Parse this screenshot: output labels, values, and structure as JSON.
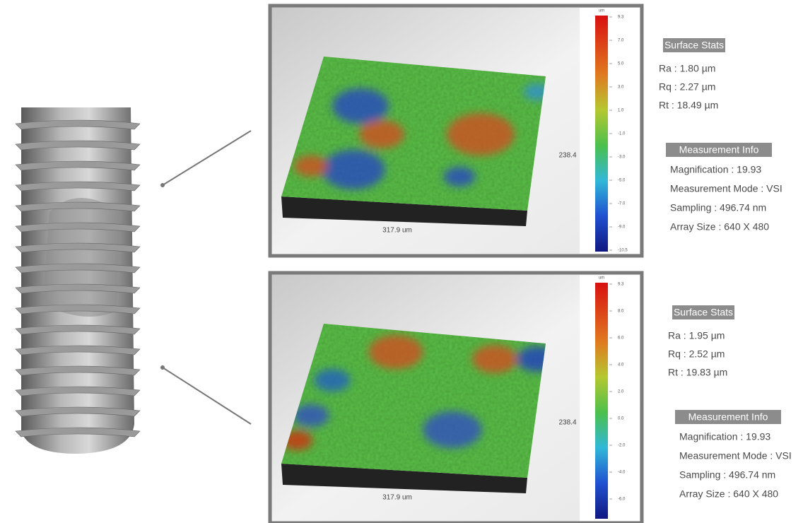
{
  "panels": [
    {
      "scale_unit": "um",
      "scale_labels": [
        "9.3",
        "7.0",
        "5.0",
        "3.0",
        "1.0",
        "-1.0",
        "-3.0",
        "-5.0",
        "-7.0",
        "-9.0",
        "-10.5"
      ],
      "width_label": "317.9 um",
      "height_label": "238.4",
      "stats_title": "Surface Stats",
      "stats": [
        "Ra : 1.80 µm",
        "Rq : 2.27 µm",
        "Rt : 18.49 µm"
      ],
      "info_title": "Measurement Info",
      "info": [
        "Magnification : 19.93",
        "Measurement Mode : VSI",
        "Sampling : 496.74 nm",
        "Array Size : 640 X 480"
      ]
    },
    {
      "scale_unit": "um",
      "scale_labels": [
        "9.3",
        "8.0",
        "6.0",
        "4.0",
        "2.0",
        "0.0",
        "-2.0",
        "-4.0",
        "-6.0"
      ],
      "width_label": "317.9 um",
      "height_label": "238.4",
      "stats_title": "Surface Stats",
      "stats": [
        "Ra : 1.95 µm",
        "Rq : 2.52 µm",
        "Rt : 19.83 µm"
      ],
      "info_title": "Measurement Info",
      "info": [
        "Magnification : 19.93",
        "Measurement Mode : VSI",
        "Sampling : 496.74 nm",
        "Array Size : 640 X 480"
      ]
    }
  ]
}
